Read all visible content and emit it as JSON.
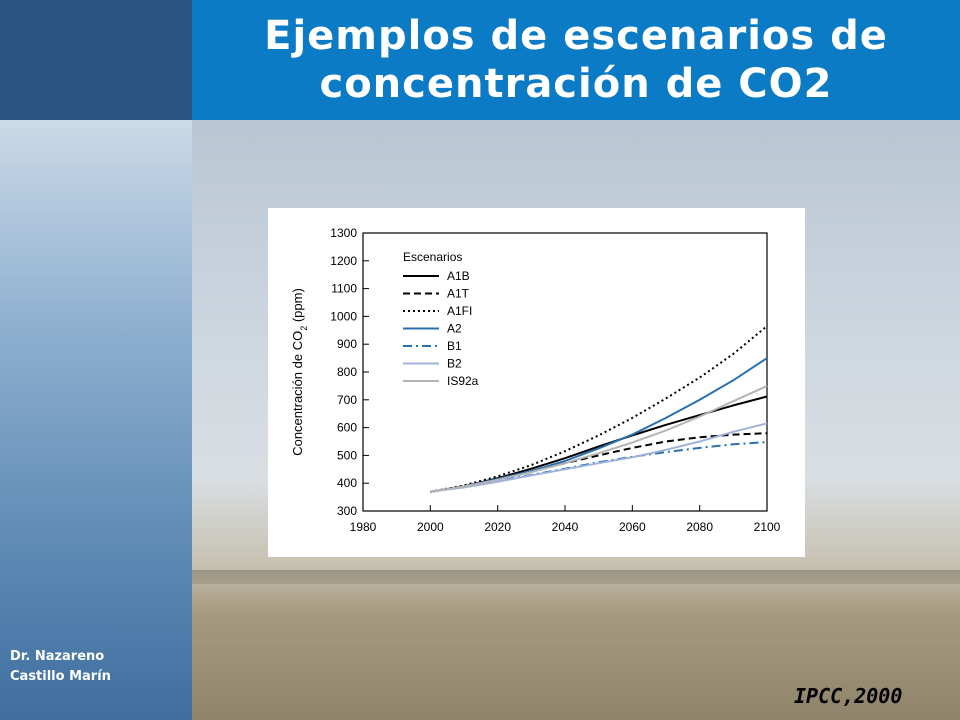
{
  "slide": {
    "title_line1": "Ejemplos de escenarios de",
    "title_line2": "concentración de CO2",
    "author_line1": "Dr. Nazareno",
    "author_line2": "Castillo Marín",
    "citation": "IPCC,2000"
  },
  "colors": {
    "title_band": "#0b7bc6",
    "sidebar_top": "#2c5482"
  },
  "chart_data": {
    "type": "line",
    "title": "",
    "xlabel": "",
    "ylabel": "Concentración de CO2 (ppm)",
    "xlim": [
      1980,
      2100
    ],
    "ylim": [
      300,
      1300
    ],
    "xticks": [
      1980,
      2000,
      2020,
      2040,
      2060,
      2080,
      2100
    ],
    "yticks": [
      300,
      400,
      500,
      600,
      700,
      800,
      900,
      1000,
      1100,
      1200,
      1300
    ],
    "legend_title": "Escenarios",
    "legend_position": "top-left",
    "grid": false,
    "x": [
      2000,
      2010,
      2020,
      2030,
      2040,
      2050,
      2060,
      2070,
      2080,
      2090,
      2100
    ],
    "series": [
      {
        "name": "A1B",
        "color": "#000000",
        "dash": "solid",
        "values": [
          369,
          389,
          418,
          452,
          490,
          532,
          572,
          610,
          645,
          680,
          712
        ]
      },
      {
        "name": "A1T",
        "color": "#000000",
        "dash": "dashed",
        "values": [
          369,
          388,
          415,
          443,
          472,
          500,
          527,
          550,
          565,
          575,
          580
        ]
      },
      {
        "name": "A1FI",
        "color": "#000000",
        "dash": "dotted",
        "values": [
          369,
          392,
          425,
          465,
          515,
          572,
          635,
          705,
          780,
          865,
          965
        ]
      },
      {
        "name": "A2",
        "color": "#2a6fb0",
        "dash": "solid",
        "values": [
          369,
          389,
          415,
          444,
          480,
          525,
          575,
          635,
          700,
          770,
          850
        ]
      },
      {
        "name": "B1",
        "color": "#2a6fb0",
        "dash": "dashdot",
        "values": [
          369,
          386,
          408,
          430,
          452,
          475,
          495,
          512,
          527,
          540,
          548
        ]
      },
      {
        "name": "B2",
        "color": "#9fb3dc",
        "dash": "solid",
        "values": [
          369,
          385,
          405,
          428,
          450,
          472,
          493,
          520,
          550,
          585,
          615
        ]
      },
      {
        "name": "IS92a",
        "color": "#b4b4b4",
        "dash": "solid",
        "values": [
          369,
          388,
          412,
          440,
          472,
          508,
          546,
          590,
          640,
          695,
          750
        ]
      }
    ]
  }
}
